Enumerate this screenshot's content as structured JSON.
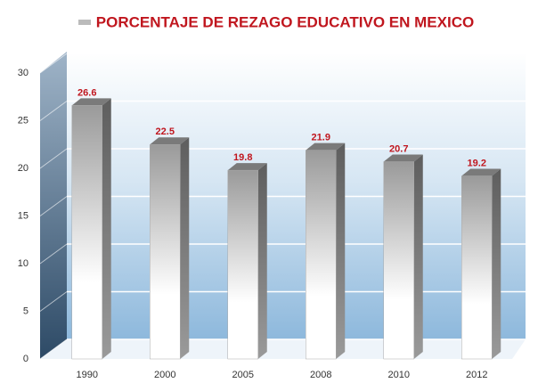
{
  "chart_data": {
    "type": "bar",
    "title": "PORCENTAJE DE REZAGO EDUCATIVO EN MEXICO",
    "categories": [
      "1990",
      "2000",
      "2005",
      "2008",
      "2010",
      "2012"
    ],
    "values": [
      26.6,
      22.5,
      19.8,
      21.9,
      20.7,
      19.2
    ],
    "color": "#a9a9a9",
    "label_color": "#c0161e",
    "ylim": [
      0,
      30
    ],
    "yticks": [
      0,
      5,
      10,
      15,
      20,
      25,
      30
    ],
    "grid": true
  }
}
